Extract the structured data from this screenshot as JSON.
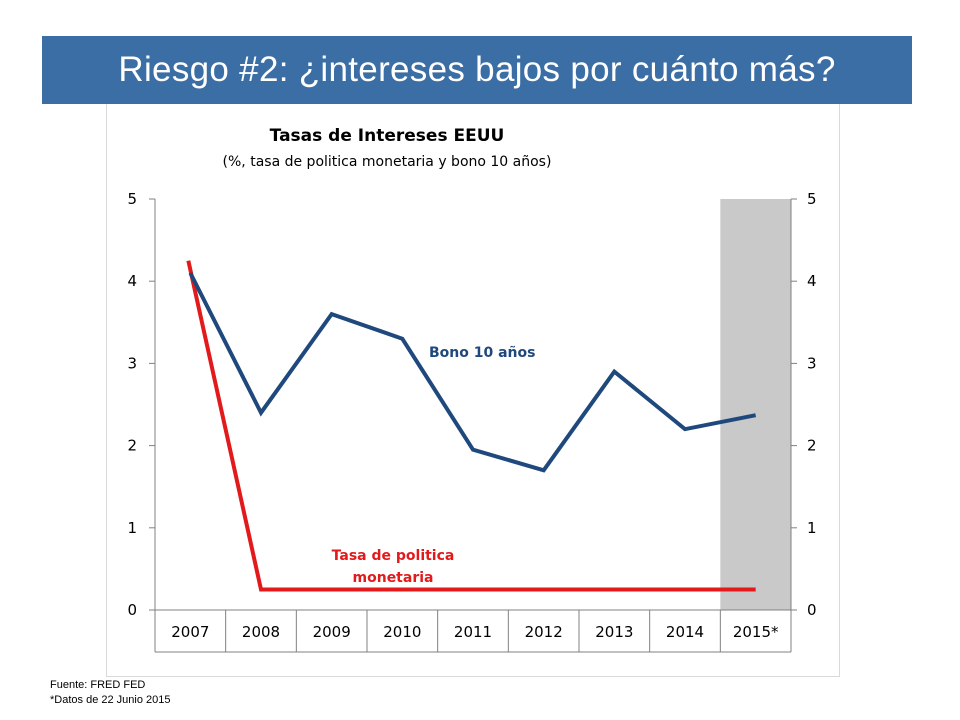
{
  "slide": {
    "title": "Riesgo #2: ¿intereses bajos por cuánto más?",
    "footnotes": [
      "Fuente: FRED FED",
      "*Datos de 22 Junio 2015"
    ]
  },
  "chart_data": {
    "type": "line",
    "title": "Tasas de Intereses EEUU",
    "subtitle": "(%, tasa de politica monetaria y bono 10 años)",
    "categories": [
      "2007",
      "2008",
      "2009",
      "2010",
      "2011",
      "2012",
      "2013",
      "2014",
      "2015*"
    ],
    "ylim": [
      0,
      5
    ],
    "y_ticks": [
      "0",
      "1",
      "2",
      "3",
      "4",
      "5"
    ],
    "secondary_y_axis": true,
    "grid": false,
    "shaded_category": "2015*",
    "series": [
      {
        "name": "Bono 10 años",
        "color": "#1f497d",
        "values": [
          4.1,
          2.4,
          3.6,
          3.3,
          1.95,
          1.7,
          2.9,
          2.2,
          2.37
        ],
        "first_point_offset": 0
      },
      {
        "name": "Tasa de politica monetaria",
        "label_lines": [
          "Tasa de politica",
          "monetaria"
        ],
        "color": "#e31a1c",
        "values": [
          4.25,
          0.25,
          0.25,
          0.25,
          0.25,
          0.25,
          0.25,
          0.25,
          0.25
        ],
        "first_point_offset": 0
      }
    ],
    "shade_color": "#c9c9c9"
  }
}
